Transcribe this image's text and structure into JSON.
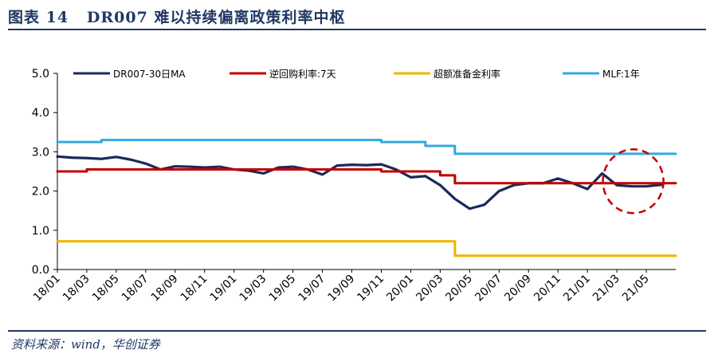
{
  "header": {
    "title": "图表 14   DR007 难以持续偏离政策利率中枢"
  },
  "footer": {
    "source": "资料来源：wind，华创证券"
  },
  "colors": {
    "dr007": "#1a2a5a",
    "repo": "#c00000",
    "excess": "#f0b400",
    "mlf": "#33a8e0",
    "highlight": "#c00000",
    "title": "#1f3864"
  },
  "chart_data": {
    "type": "line",
    "title": "",
    "xlabel": "",
    "ylabel": "",
    "ylim": [
      0,
      5
    ],
    "yticks": [
      "0.0",
      "1.0",
      "2.0",
      "3.0",
      "4.0",
      "5.0"
    ],
    "x_tick_labels": [
      "18/01",
      "18/03",
      "18/05",
      "18/07",
      "18/09",
      "18/11",
      "19/01",
      "19/03",
      "19/05",
      "19/07",
      "19/09",
      "19/11",
      "20/01",
      "20/03",
      "20/05",
      "20/07",
      "20/09",
      "20/11",
      "21/01",
      "21/03",
      "21/05"
    ],
    "x_range": [
      "2018-01",
      "2021-06"
    ],
    "legend_position": "top",
    "series": [
      {
        "name": "DR007-30日MA",
        "color": "#1a2a5a",
        "points": [
          [
            "2018-01",
            2.88
          ],
          [
            "2018-02",
            2.85
          ],
          [
            "2018-03",
            2.84
          ],
          [
            "2018-04",
            2.82
          ],
          [
            "2018-05",
            2.87
          ],
          [
            "2018-06",
            2.8
          ],
          [
            "2018-07",
            2.7
          ],
          [
            "2018-08",
            2.55
          ],
          [
            "2018-09",
            2.63
          ],
          [
            "2018-10",
            2.62
          ],
          [
            "2018-11",
            2.6
          ],
          [
            "2018-12",
            2.62
          ],
          [
            "2019-01",
            2.55
          ],
          [
            "2019-02",
            2.52
          ],
          [
            "2019-03",
            2.45
          ],
          [
            "2019-04",
            2.6
          ],
          [
            "2019-05",
            2.62
          ],
          [
            "2019-06",
            2.55
          ],
          [
            "2019-07",
            2.42
          ],
          [
            "2019-08",
            2.65
          ],
          [
            "2019-09",
            2.67
          ],
          [
            "2019-10",
            2.66
          ],
          [
            "2019-11",
            2.68
          ],
          [
            "2019-12",
            2.55
          ],
          [
            "2020-01",
            2.35
          ],
          [
            "2020-02",
            2.38
          ],
          [
            "2020-03",
            2.15
          ],
          [
            "2020-04",
            1.8
          ],
          [
            "2020-05",
            1.55
          ],
          [
            "2020-06",
            1.65
          ],
          [
            "2020-07",
            2.0
          ],
          [
            "2020-08",
            2.15
          ],
          [
            "2020-09",
            2.2
          ],
          [
            "2020-10",
            2.2
          ],
          [
            "2020-11",
            2.32
          ],
          [
            "2020-12",
            2.2
          ],
          [
            "2021-01",
            2.05
          ],
          [
            "2021-02",
            2.45
          ],
          [
            "2021-03",
            2.15
          ],
          [
            "2021-04",
            2.12
          ],
          [
            "2021-05",
            2.12
          ],
          [
            "2021-06",
            2.16
          ]
        ]
      },
      {
        "name": "逆回购利率:7天",
        "color": "#c00000",
        "step": true,
        "points": [
          [
            "2018-01",
            2.5
          ],
          [
            "2018-03",
            2.55
          ],
          [
            "2019-11",
            2.5
          ],
          [
            "2020-03",
            2.4
          ],
          [
            "2020-04",
            2.2
          ],
          [
            "2021-06",
            2.2
          ]
        ]
      },
      {
        "name": "超额准备金利率",
        "color": "#f0b400",
        "step": true,
        "points": [
          [
            "2018-01",
            0.72
          ],
          [
            "2020-04",
            0.35
          ],
          [
            "2021-06",
            0.35
          ]
        ]
      },
      {
        "name": "MLF:1年",
        "color": "#33a8e0",
        "step": true,
        "points": [
          [
            "2018-01",
            3.25
          ],
          [
            "2018-04",
            3.3
          ],
          [
            "2019-11",
            3.25
          ],
          [
            "2020-02",
            3.15
          ],
          [
            "2020-04",
            2.95
          ],
          [
            "2021-06",
            2.95
          ]
        ]
      }
    ],
    "annotation": {
      "type": "dashed-circle",
      "center": [
        "2021-04",
        2.25
      ]
    }
  }
}
